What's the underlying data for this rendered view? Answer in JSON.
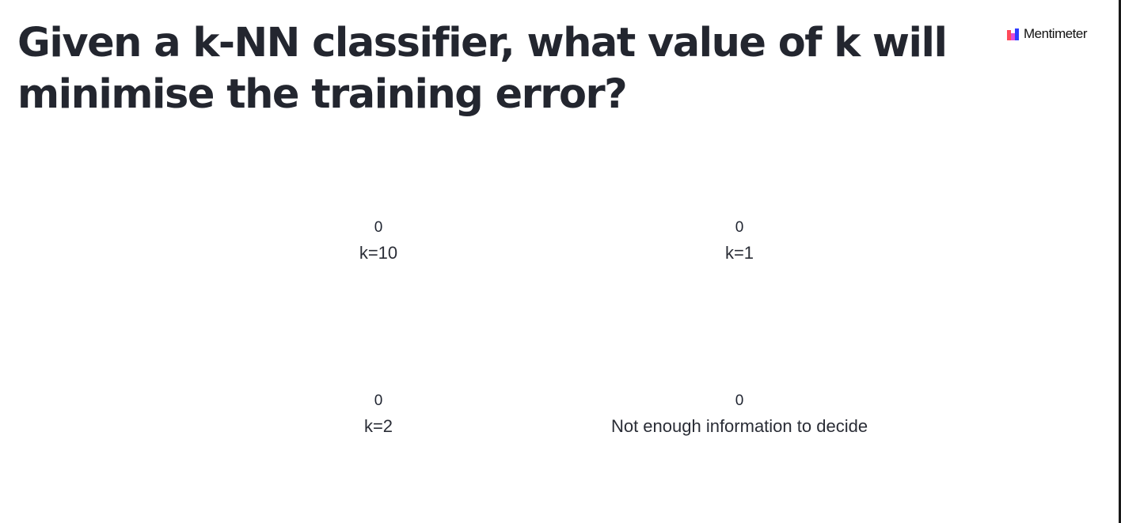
{
  "slide": {
    "question": "Given a k-NN classifier, what value of k will minimise the training error?"
  },
  "brand": {
    "name": "Mentimeter",
    "icon": "mentimeter-logo-icon",
    "colors": {
      "red": "#ff4a5a",
      "blue": "#2f3cff",
      "magenta": "#e14ad8"
    }
  },
  "options": [
    {
      "label": "k=10",
      "count": "0"
    },
    {
      "label": "k=1",
      "count": "0"
    },
    {
      "label": "k=2",
      "count": "0"
    },
    {
      "label": "Not enough information to decide",
      "count": "0"
    }
  ]
}
